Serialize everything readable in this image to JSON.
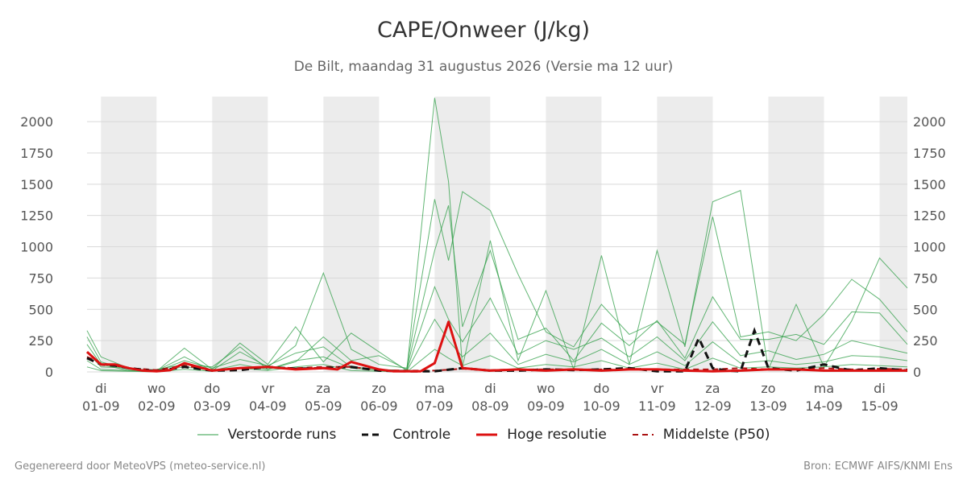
{
  "header": {
    "title": "CAPE/Onweer (J/kg)",
    "subtitle": "De Bilt, maandag 31 augustus 2026 (Versie ma 12 uur)"
  },
  "footer": {
    "left": "Gegenereerd door MeteoVPS (meteo-service.nl)",
    "right": "Bron: ECMWF AIFS/KNMI Ens"
  },
  "colors": {
    "ensemble": "#2e9e45",
    "control": "#111111",
    "highres": "#dd1111",
    "median": "#aa1111",
    "band": "#ececec",
    "grid": "#d9d9d9"
  },
  "chart_data": {
    "type": "line",
    "title": "CAPE/Onweer (J/kg)",
    "subtitle": "De Bilt, maandag 31 augustus 2026 (Versie ma 12 uur)",
    "x_unit": "day",
    "xlim": [
      -0.25,
      14.5
    ],
    "ylim": [
      0,
      2200
    ],
    "yticks": [
      0,
      250,
      500,
      750,
      1000,
      1250,
      1500,
      1750,
      2000
    ],
    "grid": true,
    "legend_position": "bottom",
    "shaded_days": [
      0,
      2,
      4,
      6,
      8,
      10,
      12,
      14
    ],
    "x_ticks": [
      {
        "day": "di",
        "date": "01-09"
      },
      {
        "day": "wo",
        "date": "02-09"
      },
      {
        "day": "do",
        "date": "03-09"
      },
      {
        "day": "vr",
        "date": "04-09"
      },
      {
        "day": "za",
        "date": "05-09"
      },
      {
        "day": "zo",
        "date": "06-09"
      },
      {
        "day": "ma",
        "date": "07-09"
      },
      {
        "day": "di",
        "date": "08-09"
      },
      {
        "day": "wo",
        "date": "09-09"
      },
      {
        "day": "do",
        "date": "10-09"
      },
      {
        "day": "vr",
        "date": "11-09"
      },
      {
        "day": "za",
        "date": "12-09"
      },
      {
        "day": "zo",
        "date": "13-09"
      },
      {
        "day": "ma",
        "date": "14-09"
      },
      {
        "day": "di",
        "date": "15-09"
      }
    ],
    "legend": [
      {
        "label": "Verstoorde runs",
        "style": "thin-green"
      },
      {
        "label": "Controle",
        "style": "black-dashed"
      },
      {
        "label": "Hoge resolutie",
        "style": "red-solid"
      },
      {
        "label": "Middelste (P50)",
        "style": "red-dashed"
      }
    ],
    "series": [
      {
        "name": "Controle",
        "x": [
          -0.25,
          0,
          0.25,
          0.5,
          1,
          1.5,
          2,
          2.5,
          3,
          3.5,
          4,
          4.5,
          5,
          5.5,
          6,
          6.5,
          7,
          7.5,
          8,
          8.5,
          9,
          9.5,
          10,
          10.25,
          10.5,
          10.75,
          11,
          11.25,
          11.5,
          11.75,
          12,
          12.5,
          13,
          13.5,
          14,
          14.5
        ],
        "y": [
          110,
          60,
          50,
          30,
          5,
          40,
          10,
          15,
          40,
          25,
          30,
          40,
          10,
          5,
          5,
          30,
          10,
          10,
          20,
          15,
          20,
          30,
          5,
          5,
          5,
          270,
          30,
          10,
          5,
          330,
          30,
          10,
          60,
          10,
          30,
          10
        ]
      },
      {
        "name": "Hoge resolutie",
        "x": [
          -0.25,
          0,
          0.25,
          0.5,
          0.75,
          1,
          1.25,
          1.5,
          2,
          2.5,
          3,
          3.5,
          4,
          4.25,
          4.5,
          5,
          5.25,
          5.5,
          5.75,
          6,
          6.25,
          6.5,
          7,
          7.5,
          8,
          8.5,
          9,
          9.5,
          10,
          10.5,
          11,
          11.5,
          12,
          12.5,
          13,
          13.5,
          14,
          14.5
        ],
        "y": [
          160,
          60,
          60,
          30,
          10,
          5,
          15,
          70,
          10,
          30,
          40,
          20,
          30,
          20,
          80,
          20,
          5,
          5,
          5,
          70,
          400,
          30,
          10,
          20,
          10,
          20,
          10,
          20,
          20,
          10,
          5,
          10,
          20,
          20,
          10,
          10,
          10,
          10
        ]
      },
      {
        "name": "Middelste (P50)",
        "x": [
          -0.25,
          0,
          0.5,
          1,
          1.5,
          2,
          2.5,
          3,
          3.5,
          4,
          4.5,
          5,
          5.5,
          6,
          6.5,
          7,
          7.5,
          8,
          8.5,
          9,
          9.5,
          10,
          10.5,
          11,
          11.5,
          12,
          12.5,
          13,
          13.5,
          14,
          14.5
        ],
        "y": [
          120,
          70,
          30,
          15,
          50,
          15,
          30,
          40,
          30,
          40,
          40,
          15,
          10,
          10,
          25,
          15,
          20,
          20,
          20,
          20,
          25,
          20,
          20,
          20,
          30,
          20,
          20,
          30,
          20,
          25,
          20
        ]
      },
      {
        "name": "Verstoorde runs (p1)",
        "x": [
          -0.25,
          0,
          0.5,
          1,
          1.5,
          2,
          2.5,
          3,
          3.5,
          4,
          4.5,
          5,
          5.5,
          6,
          6.25,
          6.5,
          7,
          7.5,
          8,
          8.5,
          9,
          9.5,
          10,
          10.5,
          11,
          11.5,
          12,
          12.5,
          13,
          13.5,
          14,
          14.5
        ],
        "y": [
          330,
          120,
          30,
          5,
          190,
          20,
          230,
          60,
          360,
          80,
          310,
          160,
          10,
          2190,
          1520,
          40,
          1050,
          90,
          650,
          20,
          930,
          60,
          970,
          200,
          1360,
          1450,
          20,
          540,
          40,
          410,
          910,
          670
        ]
      },
      {
        "name": "Verstoorde runs (p2)",
        "x": [
          -0.25,
          0,
          0.5,
          1,
          1.5,
          2,
          2.5,
          3,
          3.5,
          4,
          4.5,
          5,
          5.5,
          6,
          6.25,
          6.5,
          7,
          7.5,
          8,
          8.5,
          9,
          9.5,
          10,
          10.5,
          11,
          11.5,
          12,
          12.5,
          13,
          13.5,
          14,
          14.5
        ],
        "y": [
          280,
          80,
          20,
          10,
          120,
          10,
          160,
          40,
          210,
          790,
          180,
          60,
          30,
          1380,
          890,
          1440,
          1290,
          780,
          320,
          200,
          540,
          300,
          400,
          220,
          1240,
          280,
          320,
          250,
          460,
          740,
          580,
          320
        ]
      },
      {
        "name": "Verstoorde runs (p3)",
        "x": [
          -0.25,
          0,
          0.5,
          1,
          1.5,
          2,
          2.5,
          3,
          3.5,
          4,
          4.5,
          5,
          5.5,
          6,
          6.25,
          6.5,
          7,
          7.5,
          8,
          8.5,
          9,
          9.5,
          10,
          10.5,
          11,
          11.5,
          12,
          12.5,
          13,
          13.5,
          14,
          14.5
        ],
        "y": [
          220,
          60,
          10,
          20,
          60,
          40,
          200,
          20,
          80,
          280,
          90,
          130,
          20,
          970,
          1330,
          360,
          970,
          260,
          350,
          90,
          390,
          210,
          410,
          110,
          600,
          260,
          260,
          300,
          220,
          480,
          470,
          220
        ]
      },
      {
        "name": "Verstoorde runs (p4)",
        "x": [
          -0.25,
          0,
          0.5,
          1,
          1.5,
          2,
          2.5,
          3,
          3.5,
          4,
          4.5,
          5,
          5.5,
          6,
          6.25,
          6.5,
          7,
          7.5,
          8,
          8.5,
          9,
          9.5,
          10,
          10.5,
          11,
          11.5,
          12,
          12.5,
          13,
          13.5,
          14,
          14.5
        ],
        "y": [
          160,
          40,
          30,
          5,
          90,
          30,
          100,
          50,
          150,
          200,
          40,
          20,
          10,
          680,
          420,
          240,
          590,
          140,
          250,
          180,
          270,
          120,
          280,
          90,
          400,
          130,
          170,
          100,
          140,
          250,
          200,
          150
        ]
      },
      {
        "name": "Verstoorde runs (p5)",
        "x": [
          -0.25,
          0,
          0.5,
          1,
          1.5,
          2,
          2.5,
          3,
          3.5,
          4,
          4.5,
          5,
          5.5,
          6,
          6.25,
          6.5,
          7,
          7.5,
          8,
          8.5,
          9,
          9.5,
          10,
          10.5,
          11,
          11.5,
          12,
          12.5,
          13,
          13.5,
          14,
          14.5
        ],
        "y": [
          90,
          20,
          10,
          5,
          40,
          10,
          60,
          20,
          90,
          120,
          30,
          10,
          5,
          420,
          250,
          120,
          310,
          60,
          140,
          80,
          180,
          60,
          160,
          50,
          240,
          70,
          90,
          60,
          80,
          130,
          120,
          90
        ]
      },
      {
        "name": "Verstoorde runs (p6)",
        "x": [
          -0.25,
          0,
          0.5,
          1,
          1.5,
          2,
          2.5,
          3,
          3.5,
          4,
          4.5,
          5,
          5.5,
          6,
          6.25,
          6.5,
          7,
          7.5,
          8,
          8.5,
          9,
          9.5,
          10,
          10.5,
          11,
          11.5,
          12,
          12.5,
          13,
          13.5,
          14,
          14.5
        ],
        "y": [
          40,
          10,
          5,
          0,
          20,
          5,
          30,
          10,
          40,
          60,
          10,
          5,
          0,
          180,
          110,
          50,
          130,
          30,
          60,
          40,
          90,
          30,
          70,
          20,
          110,
          30,
          40,
          30,
          40,
          60,
          50,
          40
        ]
      }
    ]
  }
}
